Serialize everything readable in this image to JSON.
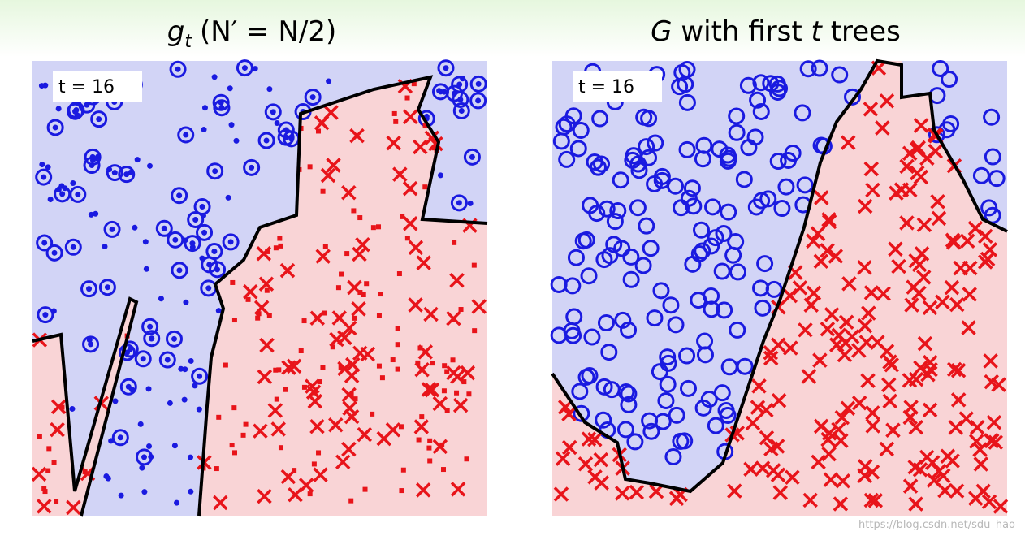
{
  "panels": [
    {
      "title": {
        "symbol": "g",
        "subscript": "t",
        "rest": "(N′ = N/2)"
      },
      "label": "t = 16"
    },
    {
      "title": {
        "symbol": "G",
        "rest": "with first",
        "variable": "t",
        "tail": "trees"
      },
      "label": "t = 16"
    }
  ],
  "watermark": "https://blog.csdn.net/sdu_hao"
}
